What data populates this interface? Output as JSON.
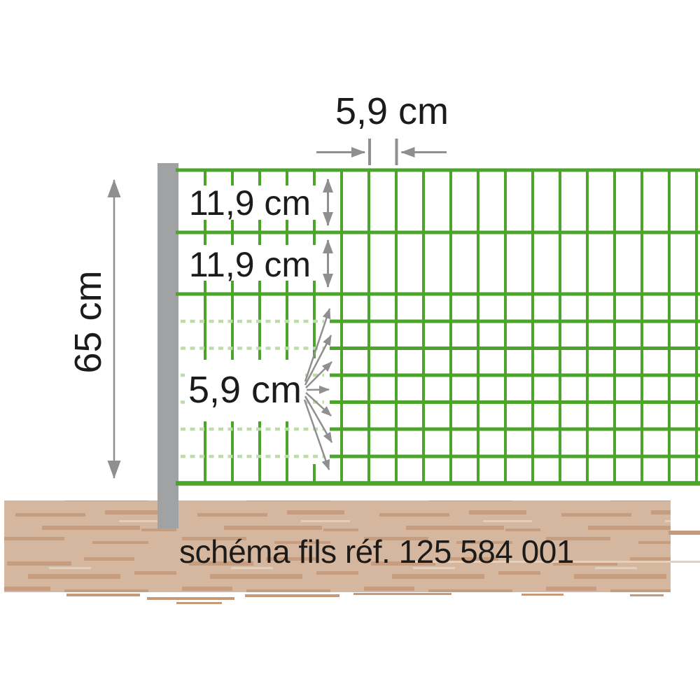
{
  "diagram": {
    "labels": {
      "top_spacing": "5,9 cm",
      "row_gap_1": "11,9 cm",
      "row_gap_2": "11,9 cm",
      "fence_height": "65 cm",
      "bottom_spacing": "5,9 cm"
    },
    "caption": {
      "text": "schéma fils réf. 125 584 001",
      "reference": "125 584 001"
    }
  },
  "colors": {
    "wire_green": "#4aa52a",
    "wire_light_green": "#bedcaa",
    "annotation_gray": "#8f8f90",
    "post_gray": "#a1a2a4",
    "ground_tan": "#d5b79f",
    "ground_speckle": "#c49a7b",
    "text_dark": "#1d1b19"
  }
}
